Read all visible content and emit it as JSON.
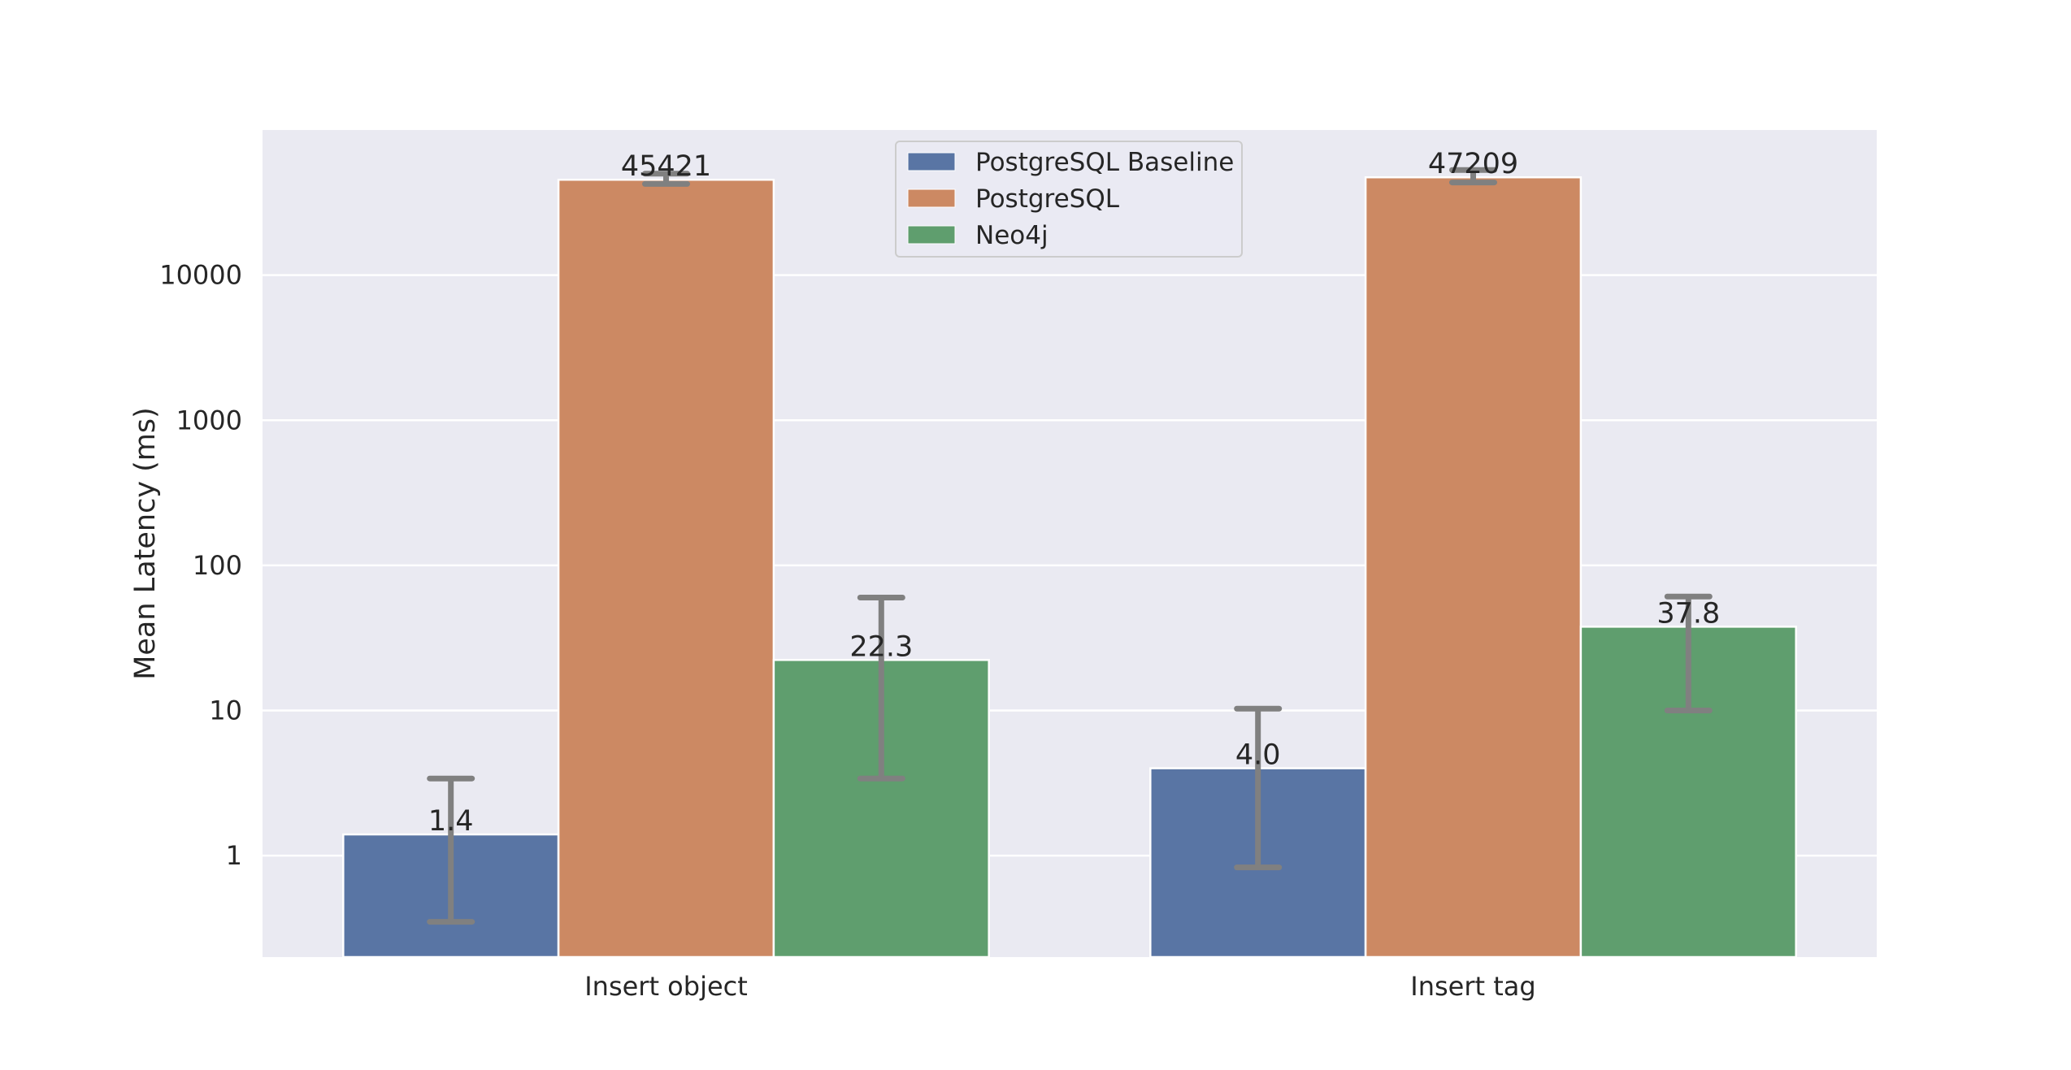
{
  "chart_data": {
    "type": "bar",
    "ylabel": "Mean Latency (ms)",
    "xlabel": "",
    "yscale": "log",
    "ylim": [
      0.2,
      100000
    ],
    "yticks": [
      1,
      10,
      100,
      1000,
      10000
    ],
    "ytick_labels": [
      "1",
      "10",
      "100",
      "1000",
      "10000"
    ],
    "categories": [
      "Insert object",
      "Insert tag"
    ],
    "series": [
      {
        "name": "PostgreSQL Baseline",
        "color": "#5975a4",
        "values": [
          1.4,
          4.0
        ],
        "labels": [
          "1.4",
          "4.0"
        ],
        "err_low": [
          0.35,
          0.83
        ],
        "err_high": [
          3.4,
          10.3
        ]
      },
      {
        "name": "PostgreSQL",
        "color": "#cc8963",
        "values": [
          45421,
          47209
        ],
        "labels": [
          "45421",
          "47209"
        ],
        "err_low": [
          42500,
          43500
        ],
        "err_high": [
          50000,
          53000
        ]
      },
      {
        "name": "Neo4j",
        "color": "#5f9e6e",
        "values": [
          22.3,
          37.8
        ],
        "labels": [
          "22.3",
          "37.8"
        ],
        "err_low": [
          3.4,
          10.0
        ],
        "err_high": [
          60,
          61
        ]
      }
    ],
    "legend_position": "top-center",
    "grid": true,
    "background": "#eaeaf2",
    "errorbar_color": "#808080"
  }
}
